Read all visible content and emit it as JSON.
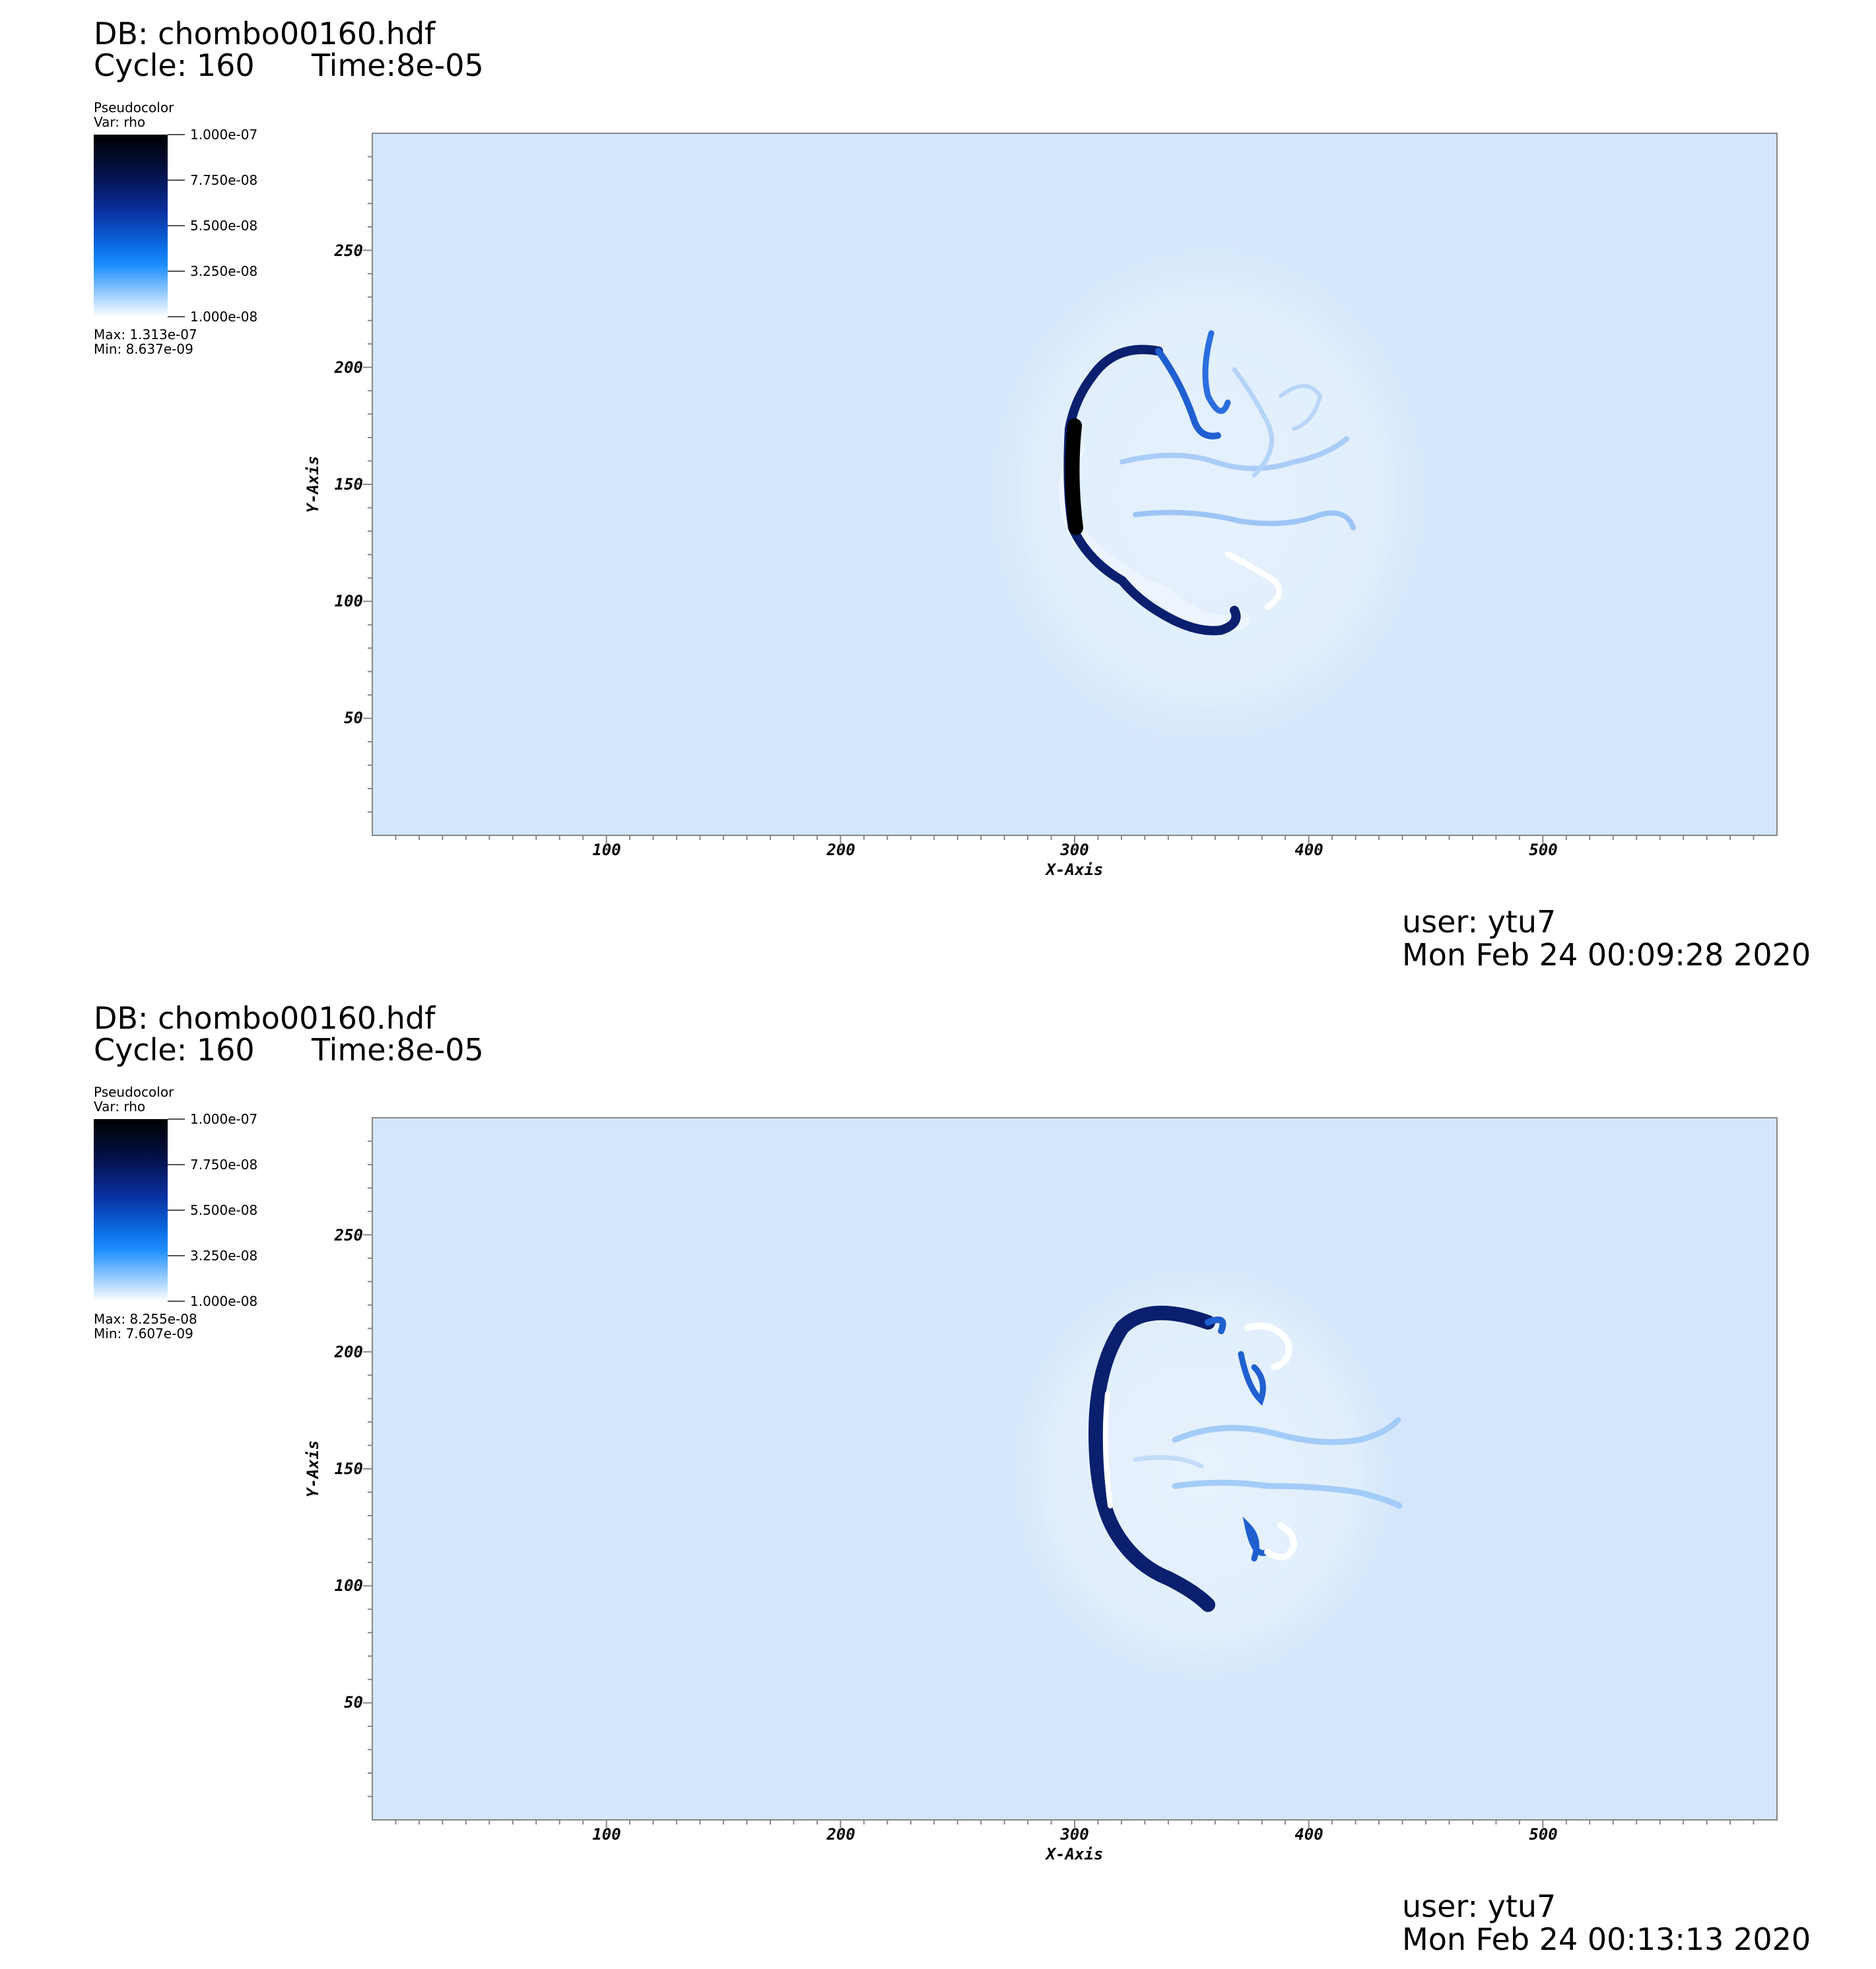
{
  "panels": [
    {
      "db": "DB: chombo00160.hdf",
      "cycle": "Cycle: 160",
      "time": "Time:8e-05",
      "legend": {
        "title": "Pseudocolor",
        "var": "Var: rho",
        "ticks": [
          "1.000e-07",
          "7.750e-08",
          "5.500e-08",
          "3.250e-08",
          "1.000e-08"
        ],
        "max": "Max:  1.313e-07",
        "min": "Min:  8.637e-09"
      },
      "user": "user: ytu7",
      "date": "Mon Feb 24 00:09:28 2020"
    },
    {
      "db": "DB: chombo00160.hdf",
      "cycle": "Cycle: 160",
      "time": "Time:8e-05",
      "legend": {
        "title": "Pseudocolor",
        "var": "Var: rho",
        "ticks": [
          "1.000e-07",
          "7.750e-08",
          "5.500e-08",
          "3.250e-08",
          "1.000e-08"
        ],
        "max": "Max:  8.255e-08",
        "min": "Min:  7.607e-09"
      },
      "user": "user: ytu7",
      "date": "Mon Feb 24 00:13:13 2020"
    }
  ],
  "chart_data": [
    {
      "type": "heatmap",
      "variable": "rho",
      "xlabel": "X-Axis",
      "ylabel": "Y-Axis",
      "xlim": [
        0,
        600
      ],
      "ylim": [
        0,
        300
      ],
      "xticks": [
        100,
        200,
        300,
        400,
        500
      ],
      "yticks": [
        50,
        100,
        150,
        200,
        250
      ],
      "colorbar_range": [
        1e-08,
        1e-07
      ],
      "data_max": 1.313e-07,
      "data_min": 8.637e-09,
      "background_color": "#d4e6fb",
      "front_color": "#0a1f6e"
    },
    {
      "type": "heatmap",
      "variable": "rho",
      "xlabel": "X-Axis",
      "ylabel": "Y-Axis",
      "xlim": [
        0,
        600
      ],
      "ylim": [
        0,
        300
      ],
      "xticks": [
        100,
        200,
        300,
        400,
        500
      ],
      "yticks": [
        50,
        100,
        150,
        200,
        250
      ],
      "colorbar_range": [
        1e-08,
        1e-07
      ],
      "data_max": 8.255e-08,
      "data_min": 7.607e-09,
      "background_color": "#d4e6fb",
      "front_color": "#0a1f6e"
    }
  ]
}
